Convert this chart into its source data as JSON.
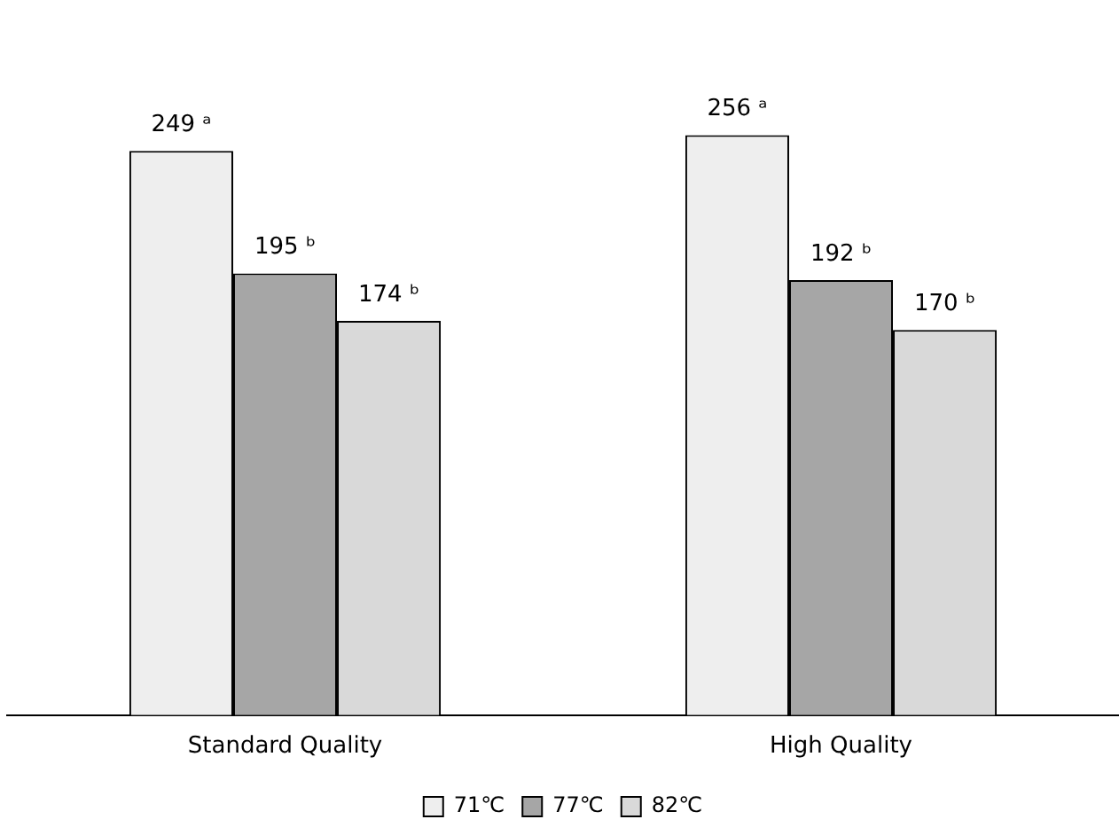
{
  "chart_data": {
    "type": "bar",
    "categories": [
      "Standard Quality",
      "High Quality"
    ],
    "series": [
      {
        "name": "71℃",
        "color": "#eeeeee",
        "values": [
          249,
          256
        ],
        "value_labels": [
          "249 ᵃ",
          "256 ᵃ"
        ]
      },
      {
        "name": "77℃",
        "color": "#a6a6a6",
        "values": [
          195,
          192
        ],
        "value_labels": [
          "195 ᵇ",
          "192 ᵇ"
        ]
      },
      {
        "name": "82℃",
        "color": "#d9d9d9",
        "values": [
          174,
          170
        ],
        "value_labels": [
          "174 ᵇ",
          "170 ᵇ"
        ]
      }
    ],
    "legend": "bottom",
    "grid": false
  }
}
